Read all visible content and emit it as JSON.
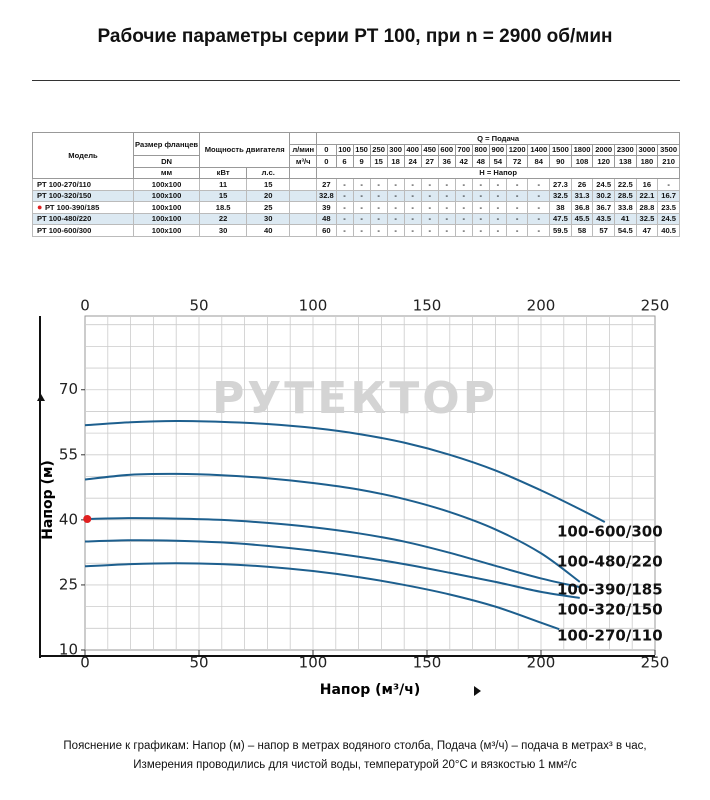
{
  "header": {
    "title": "Рабочие параметры серии РТ 100, при n = 2900 об/мин"
  },
  "table": {
    "model": "Модель",
    "flange": "Размер фланцев",
    "dn": "DN",
    "mm": "мм",
    "power": "Мощность двигателя",
    "kw": "кВт",
    "hp": "л.с.",
    "unit_lmin": "л/мин",
    "unit_m3h": "м³/ч",
    "q_title": "Q = Подача",
    "h_title": "H = Напор",
    "q_lmin": [
      0,
      100,
      150,
      250,
      300,
      400,
      450,
      600,
      700,
      800,
      900,
      1200,
      1400,
      1500,
      1800,
      2000,
      2300,
      3000,
      3500
    ],
    "q_m3h": [
      0,
      6,
      9,
      15,
      18,
      24,
      27,
      36,
      42,
      48,
      54,
      72,
      84,
      90,
      108,
      120,
      138,
      180,
      210
    ],
    "highlight_row": 2,
    "rows": [
      [
        "РТ 100-270/110",
        "100x100",
        11,
        15,
        27,
        "-",
        "-",
        "-",
        "-",
        "-",
        "-",
        "-",
        "-",
        "-",
        "-",
        "-",
        "-",
        27.3,
        26,
        24.5,
        22.5,
        16,
        "-"
      ],
      [
        "РТ 100-320/150",
        "100x100",
        15,
        20,
        32.8,
        "-",
        "-",
        "-",
        "-",
        "-",
        "-",
        "-",
        "-",
        "-",
        "-",
        "-",
        "-",
        32.5,
        31.3,
        30.2,
        28.5,
        22.1,
        16.7
      ],
      [
        "РТ 100-390/185",
        "100x100",
        18.5,
        25,
        39,
        "-",
        "-",
        "-",
        "-",
        "-",
        "-",
        "-",
        "-",
        "-",
        "-",
        "-",
        "-",
        38,
        36.8,
        36.7,
        33.8,
        28.8,
        23.5
      ],
      [
        "РТ 100-480/220",
        "100x100",
        22,
        30,
        48,
        "-",
        "-",
        "-",
        "-",
        "-",
        "-",
        "-",
        "-",
        "-",
        "-",
        "-",
        "-",
        47.5,
        45.5,
        43.5,
        41,
        32.5,
        24.5
      ],
      [
        "РТ 100-600/300",
        "100x100",
        30,
        40,
        60,
        "-",
        "-",
        "-",
        "-",
        "-",
        "-",
        "-",
        "-",
        "-",
        "-",
        "-",
        "-",
        59.5,
        58,
        57,
        54.5,
        47,
        40.5
      ]
    ]
  },
  "chart_data": {
    "type": "line",
    "watermark": "РУТЕКТОР",
    "x_label": "Напор (м³/ч)",
    "y_label": "Напор (м)",
    "xlim": [
      0,
      250
    ],
    "xticks": [
      0,
      50,
      100,
      150,
      200,
      250
    ],
    "ylim": [
      10,
      87
    ],
    "yticks": [
      10,
      25,
      40,
      55,
      70
    ],
    "x_grid_step": 10,
    "y_grid_step": 5,
    "grid": true,
    "highlight": {
      "series": 2,
      "color": "#e02020"
    },
    "series": [
      {
        "name": "100-600/300",
        "color": "#1d5f8e",
        "x": [
          0,
          20,
          40,
          60,
          80,
          100,
          120,
          140,
          160,
          180,
          200,
          215,
          228
        ],
        "values": [
          61.8,
          62.5,
          62.8,
          62.6,
          62.1,
          61.2,
          59.8,
          57.8,
          55,
          51.4,
          46.8,
          43,
          39.5
        ]
      },
      {
        "name": "100-480/220",
        "color": "#1d5f8e",
        "x": [
          0,
          20,
          40,
          60,
          80,
          100,
          120,
          140,
          160,
          180,
          200,
          217
        ],
        "values": [
          49.3,
          50.4,
          50.6,
          50.3,
          49.6,
          48.5,
          47,
          44.8,
          41.8,
          37.8,
          32.3,
          25.7
        ]
      },
      {
        "name": "100-390/185",
        "color": "#1d5f8e",
        "x": [
          1,
          20,
          40,
          60,
          80,
          100,
          120,
          140,
          160,
          180,
          200,
          217
        ],
        "values": [
          40.2,
          40.4,
          40.3,
          40,
          39.3,
          38.3,
          36.9,
          35,
          32.4,
          29.4,
          26.5,
          24.5
        ]
      },
      {
        "name": "100-320/150",
        "color": "#1d5f8e",
        "x": [
          0,
          20,
          40,
          60,
          80,
          100,
          120,
          140,
          160,
          180,
          200,
          217
        ],
        "values": [
          35,
          35.3,
          35.2,
          34.8,
          34,
          32.9,
          31.5,
          29.8,
          27.8,
          25.7,
          23.4,
          22
        ]
      },
      {
        "name": "100-270/110",
        "color": "#1d5f8e",
        "x": [
          0,
          20,
          40,
          60,
          80,
          100,
          120,
          140,
          160,
          180,
          200,
          208
        ],
        "values": [
          29.3,
          29.8,
          30,
          29.8,
          29.2,
          28.2,
          26.8,
          25,
          22.8,
          20,
          16.3,
          14.8
        ]
      }
    ]
  },
  "footnote": [
    "Пояснение к графикам: Напор (м) – напор в метрах водяного столба, Подача (м³/ч) – подача в метрах³ в час,",
    "Измерения проводились для чистой воды, температурой 20°С и вязкостью 1 мм²/с"
  ]
}
